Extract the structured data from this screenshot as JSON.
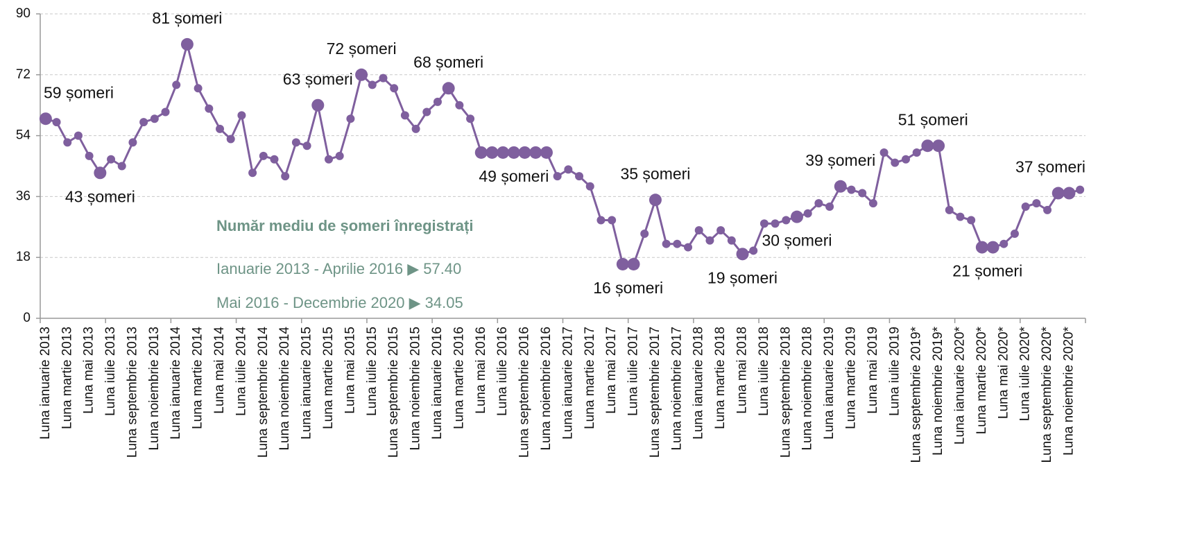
{
  "chart_data": {
    "type": "line",
    "color": "#7f5f9e",
    "annotation_title": "Număr mediu de șomeri înregistrați",
    "annotations": [
      "Ianuarie 2013 - Aprilie 2016 ▶ 57.40",
      "Mai 2016 - Decembrie 2020 ▶ 34.05"
    ],
    "categories": [
      "Luna ianuarie 2013",
      null,
      "Luna martie 2013",
      null,
      "Luna mai 2013",
      null,
      "Luna iulie 2013",
      null,
      "Luna septembrie 2013",
      null,
      "Luna noiembrie 2013",
      null,
      "Luna ianuarie 2014",
      null,
      "Luna martie 2014",
      null,
      "Luna mai 2014",
      null,
      "Luna iulie 2014",
      null,
      "Luna septembrie 2014",
      null,
      "Luna noiembrie 2014",
      null,
      "Luna ianuarie 2015",
      null,
      "Luna martie 2015",
      null,
      "Luna mai 2015",
      null,
      "Luna iulie 2015",
      null,
      "Luna septembrie 2015",
      null,
      "Luna noiembrie 2015",
      null,
      "Luna ianuarie 2016",
      null,
      "Luna martie 2016",
      null,
      "Luna mai 2016",
      null,
      "Luna iulie 2016",
      null,
      "Luna septembrie 2016",
      null,
      "Luna noiembrie 2016",
      null,
      "Luna ianuarie 2017",
      null,
      "Luna martie 2017",
      null,
      "Luna mai 2017",
      null,
      "Luna iulie 2017",
      null,
      "Luna septembrie 2017",
      null,
      "Luna noiembrie 2017",
      null,
      "Luna ianuarie 2018",
      null,
      "Luna martie 2018",
      null,
      "Luna mai 2018",
      null,
      "Luna iulie 2018",
      null,
      "Luna septembrie 2018",
      null,
      "Luna noiembrie 2018",
      null,
      "Luna ianuarie 2019",
      null,
      "Luna martie 2019",
      null,
      "Luna mai 2019",
      null,
      "Luna iulie 2019",
      null,
      "Luna septembrie 2019*",
      null,
      "Luna noiembrie 2019*",
      null,
      "Luna ianuarie 2020*",
      null,
      "Luna martie 2020*",
      null,
      "Luna mai 2020*",
      null,
      "Luna iulie 2020*",
      null,
      "Luna septembrie 2020*",
      null,
      "Luna noiembrie 2020*",
      null
    ],
    "values": [
      59,
      58,
      52,
      54,
      48,
      43,
      47,
      45,
      52,
      58,
      59,
      61,
      69,
      81,
      68,
      62,
      56,
      53,
      60,
      43,
      48,
      47,
      42,
      52,
      51,
      63,
      47,
      48,
      59,
      72,
      69,
      71,
      68,
      60,
      56,
      61,
      64,
      68,
      63,
      59,
      49,
      49,
      49,
      49,
      49,
      49,
      49,
      42,
      44,
      42,
      39,
      29,
      29,
      16,
      16,
      25,
      35,
      22,
      22,
      21,
      26,
      23,
      26,
      23,
      19,
      20,
      28,
      28,
      29,
      30,
      31,
      34,
      33,
      39,
      38,
      37,
      34,
      49,
      46,
      47,
      49,
      51,
      51,
      32,
      30,
      29,
      21,
      21,
      22,
      25,
      33,
      34,
      32,
      37,
      37,
      38
    ],
    "value_labels": [
      "59 șomeri",
      null,
      null,
      null,
      null,
      "43 șomeri",
      null,
      null,
      null,
      null,
      null,
      null,
      null,
      "81 șomeri",
      null,
      null,
      null,
      null,
      null,
      null,
      null,
      null,
      null,
      null,
      null,
      "63 șomeri",
      null,
      null,
      null,
      "72 șomeri",
      null,
      null,
      null,
      null,
      null,
      null,
      null,
      "68 șomeri",
      null,
      null,
      "49 șomeri",
      null,
      null,
      null,
      null,
      null,
      null,
      null,
      null,
      null,
      null,
      null,
      null,
      "16 șomeri",
      null,
      null,
      "35 șomeri",
      null,
      null,
      null,
      null,
      null,
      null,
      null,
      "19 șomeri",
      null,
      null,
      null,
      null,
      "30 șomeri",
      null,
      null,
      null,
      "39 șomeri",
      null,
      null,
      null,
      null,
      null,
      null,
      null,
      "51 șomeri",
      null,
      null,
      null,
      null,
      "21 șomeri",
      null,
      null,
      null,
      null,
      null,
      null,
      "37 șomeri",
      null,
      null
    ],
    "ylim": [
      0,
      90
    ],
    "yticks": [
      0,
      18,
      36,
      54,
      72,
      90
    ],
    "grid": true
  }
}
